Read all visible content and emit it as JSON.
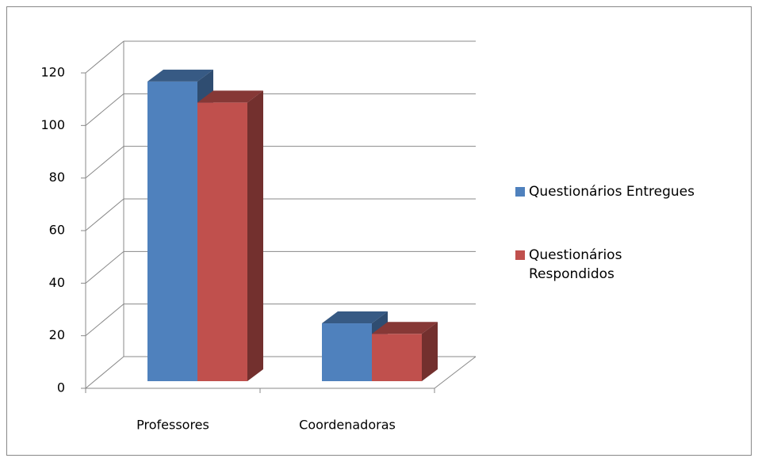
{
  "chart_data": {
    "type": "bar3d",
    "categories": [
      "Professores",
      "Coordenadoras"
    ],
    "series": [
      {
        "name": "Questionários Entregues",
        "color": "#4f81bd",
        "values": [
          114,
          22
        ]
      },
      {
        "name": "Questionários Respondidos",
        "color": "#c0504d",
        "values": [
          106,
          18
        ]
      }
    ],
    "ylim": [
      0,
      120
    ],
    "yticks": [
      0,
      20,
      40,
      60,
      80,
      100,
      120
    ],
    "grid": true,
    "legend": "right"
  }
}
